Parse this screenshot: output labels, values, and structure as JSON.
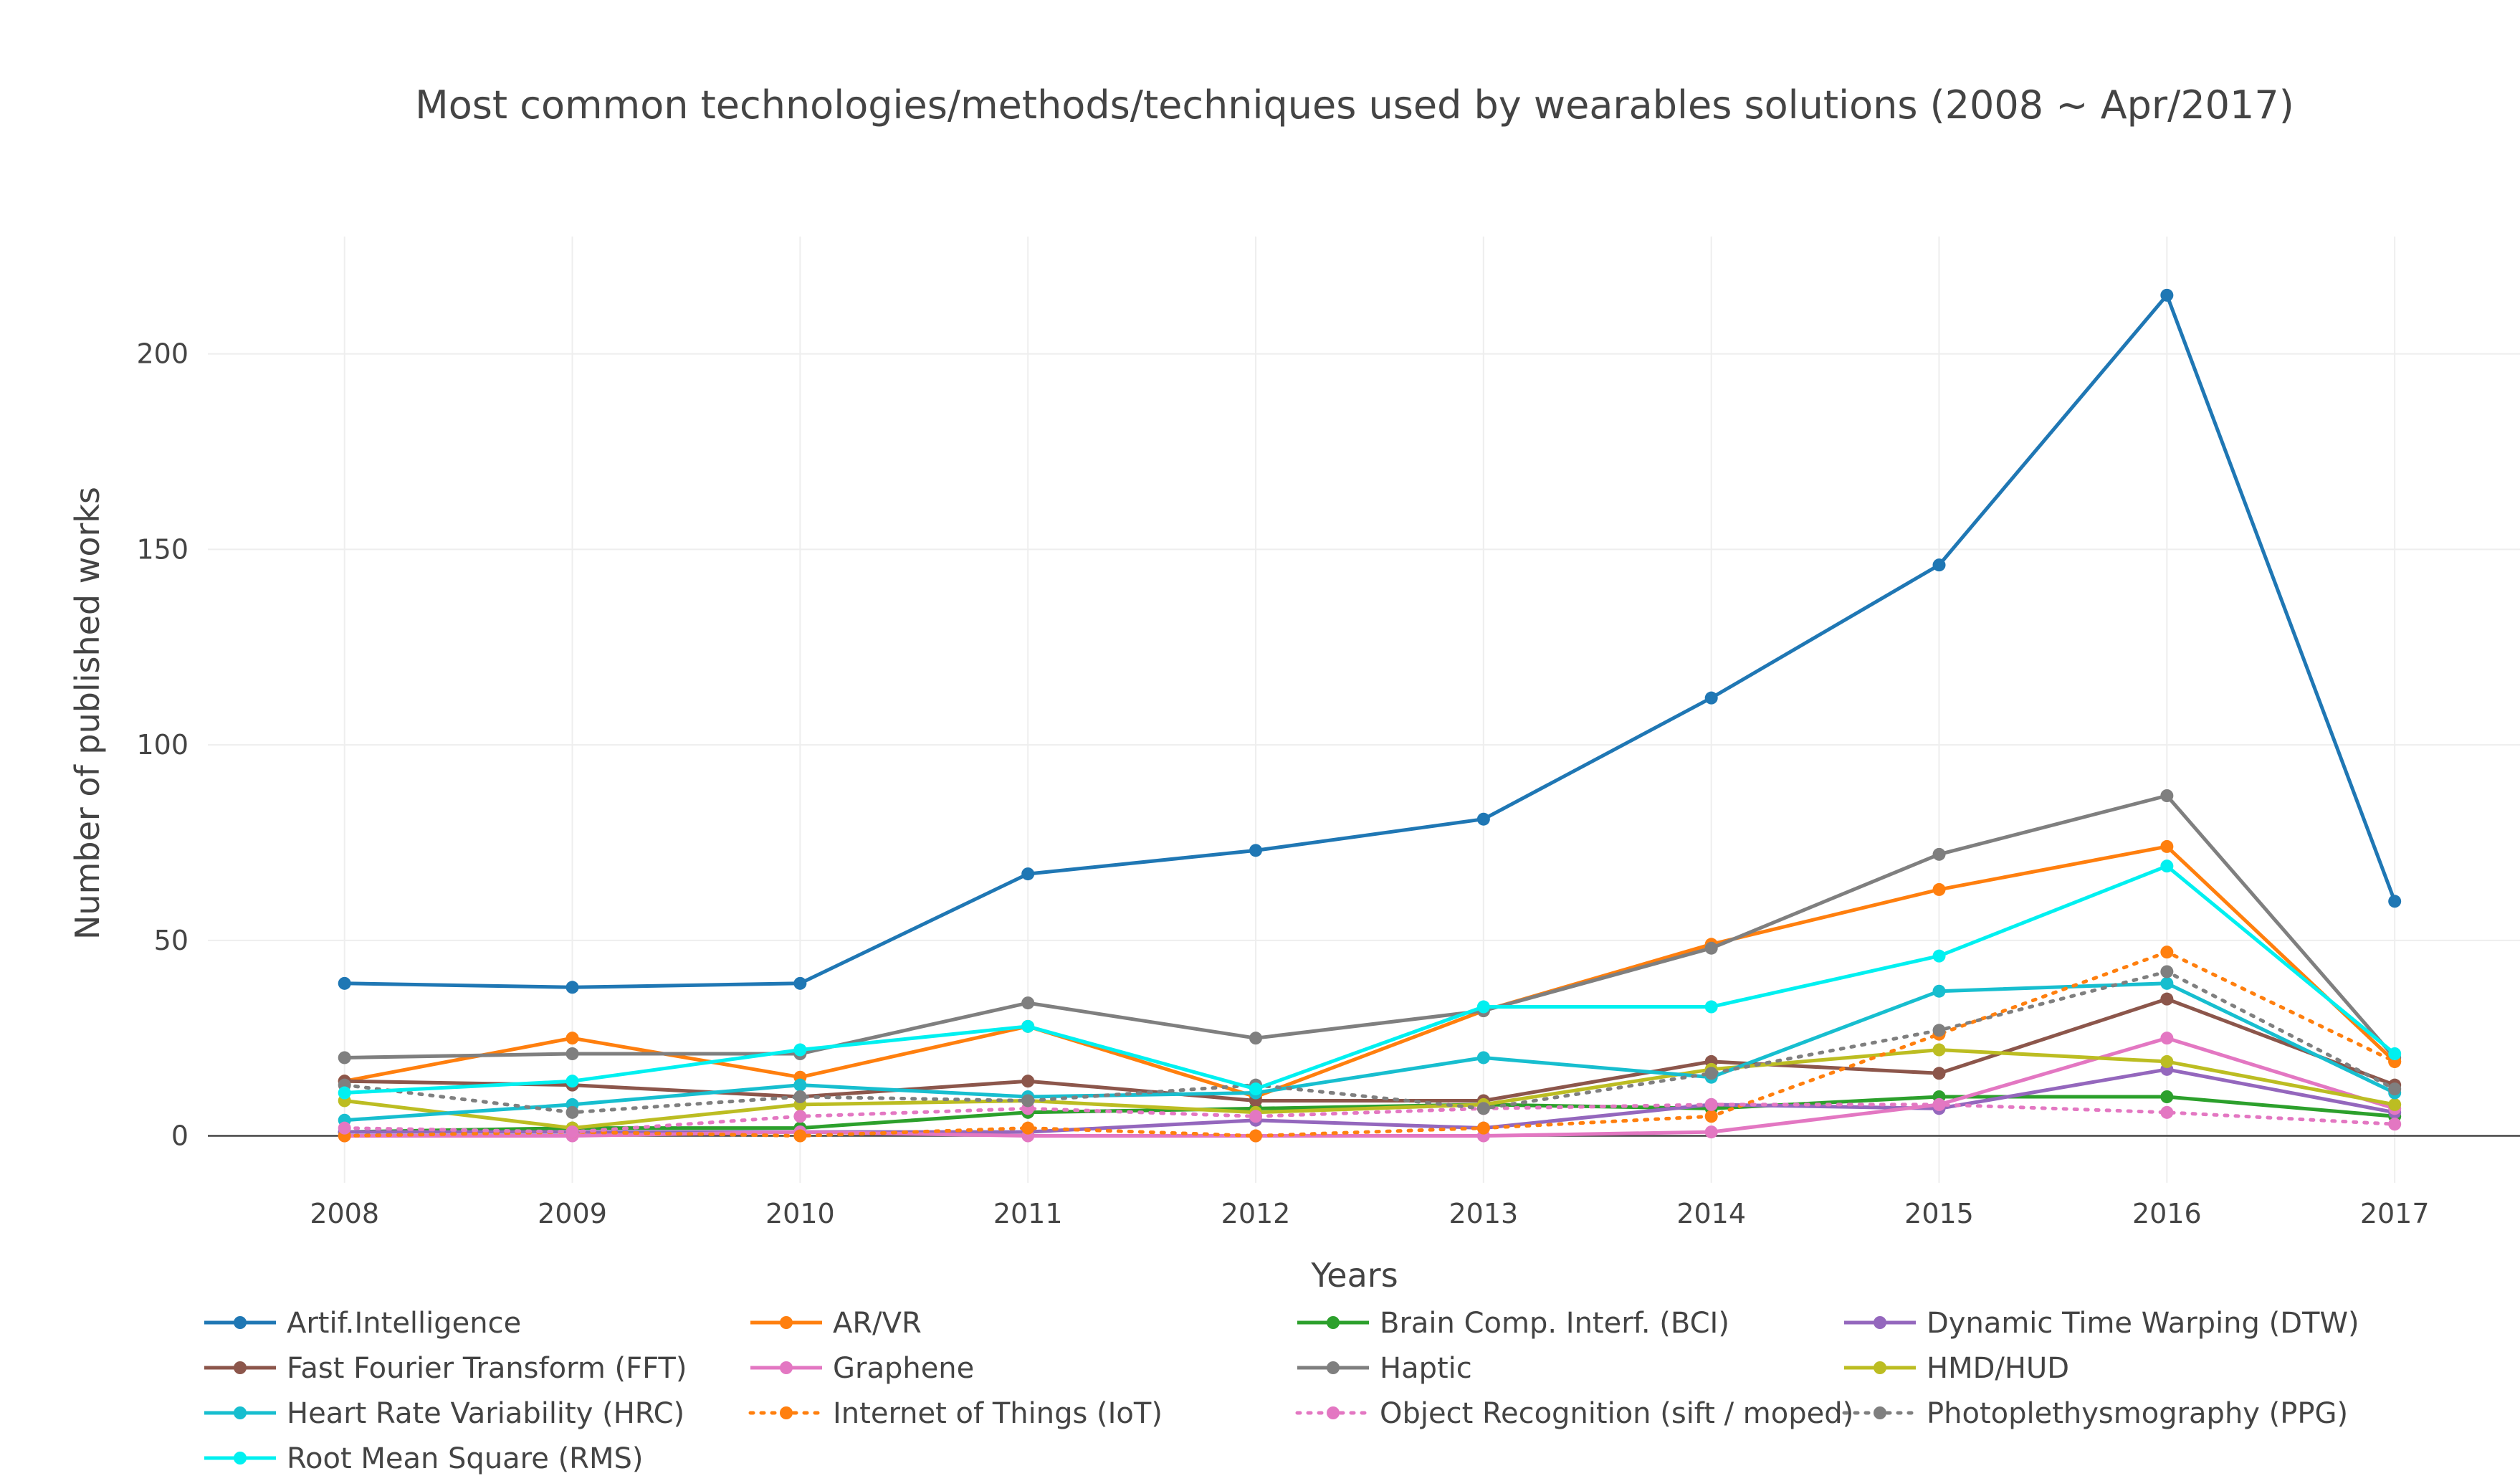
{
  "chart_data": {
    "type": "line",
    "title": "Most common technologies/methods/techniques used by wearables solutions (2008 ~ Apr/2017)",
    "xlabel": "Years",
    "ylabel": "Number of published works",
    "x": [
      2008,
      2009,
      2010,
      2011,
      2012,
      2013,
      2014,
      2015,
      2016,
      2017
    ],
    "x_tick_labels": [
      "2008",
      "2009",
      "2010",
      "2011",
      "2012",
      "2013",
      "2014",
      "2015",
      "2016",
      "2017"
    ],
    "y_ticks": [
      0,
      50,
      100,
      150,
      200
    ],
    "y_tick_labels": [
      "0",
      "50",
      "100",
      "150",
      "200"
    ],
    "ylim": [
      -12,
      230
    ],
    "xlim": [
      2007.4,
      2017.55
    ],
    "grid": true,
    "legend_position": "bottom",
    "series": [
      {
        "name": "Artif.Intelligence",
        "color": "#1f77b4",
        "dash": "solid",
        "values": [
          39,
          38,
          39,
          67,
          73,
          81,
          112,
          146,
          215,
          60
        ]
      },
      {
        "name": "AR/VR",
        "color": "#ff7f0e",
        "dash": "solid",
        "values": [
          14,
          25,
          15,
          28,
          10,
          32,
          49,
          63,
          74,
          19
        ]
      },
      {
        "name": "Brain Comp. Interf. (BCI)",
        "color": "#2ca02c",
        "dash": "solid",
        "values": [
          1,
          2,
          2,
          6,
          7,
          8,
          7,
          10,
          10,
          5
        ]
      },
      {
        "name": "Dynamic Time Warping (DTW)",
        "color": "#9467bd",
        "dash": "solid",
        "values": [
          1,
          1,
          1,
          1,
          4,
          2,
          8,
          7,
          17,
          6
        ]
      },
      {
        "name": "Fast Fourier Transform (FFT)",
        "color": "#8c564b",
        "dash": "solid",
        "values": [
          14,
          13,
          10,
          14,
          9,
          9,
          19,
          16,
          35,
          13
        ]
      },
      {
        "name": "Graphene",
        "color": "#e377c2",
        "dash": "solid",
        "values": [
          0,
          0,
          1,
          0,
          0,
          0,
          1,
          8,
          25,
          7
        ]
      },
      {
        "name": "Haptic",
        "color": "#7f7f7f",
        "dash": "solid",
        "values": [
          20,
          21,
          21,
          34,
          25,
          32,
          48,
          72,
          87,
          20
        ]
      },
      {
        "name": "HMD/HUD",
        "color": "#bcbd22",
        "dash": "solid",
        "values": [
          9,
          2,
          8,
          9,
          6,
          8,
          17,
          22,
          19,
          8
        ]
      },
      {
        "name": "Heart Rate Variability (HRC)",
        "color": "#17becf",
        "dash": "solid",
        "values": [
          4,
          8,
          13,
          10,
          11,
          20,
          15,
          37,
          39,
          11
        ]
      },
      {
        "name": "Internet of Things (IoT)",
        "color": "#ff7f0e",
        "dash": "dot",
        "values": [
          0,
          1,
          0,
          2,
          0,
          2,
          5,
          26,
          47,
          19
        ]
      },
      {
        "name": "Object Recognition (sift / moped)",
        "color": "#e377c2",
        "dash": "dot",
        "values": [
          2,
          1,
          5,
          7,
          5,
          7,
          8,
          8,
          6,
          3
        ]
      },
      {
        "name": "Photoplethysmography (PPG)",
        "color": "#7f7f7f",
        "dash": "dot",
        "values": [
          13,
          6,
          10,
          9,
          13,
          7,
          16,
          27,
          42,
          12
        ]
      },
      {
        "name": "Root Mean Square (RMS)",
        "color": "#00f0f0",
        "dash": "solid",
        "values": [
          11,
          14,
          22,
          28,
          12,
          33,
          33,
          46,
          69,
          21
        ]
      }
    ]
  }
}
